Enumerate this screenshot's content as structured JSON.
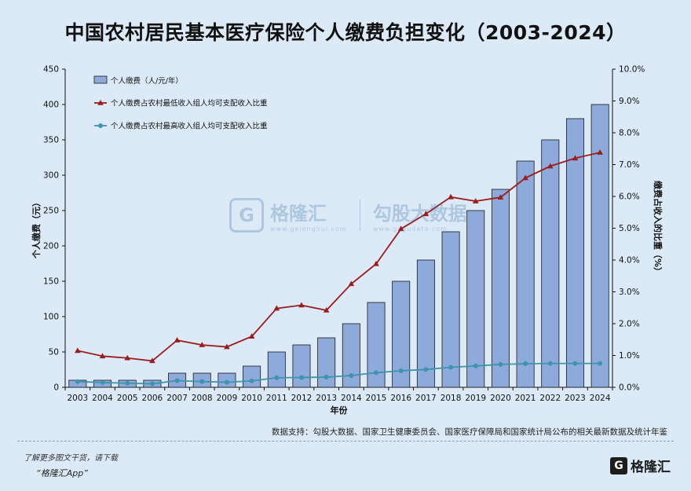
{
  "title": "中国农村居民基本医疗保险个人缴费负担变化（2003-2024）",
  "chart_data": {
    "type": "bar",
    "categories": [
      "2003",
      "2004",
      "2005",
      "2006",
      "2007",
      "2008",
      "2009",
      "2010",
      "2011",
      "2012",
      "2013",
      "2014",
      "2015",
      "2016",
      "2017",
      "2018",
      "2019",
      "2020",
      "2021",
      "2022",
      "2023",
      "2024"
    ],
    "series": [
      {
        "name": "个人缴费（人/元/年）",
        "type": "bar",
        "axis": "left",
        "color": "#8eaadb",
        "values": [
          10,
          10,
          10,
          10,
          20,
          20,
          20,
          30,
          50,
          60,
          70,
          90,
          120,
          150,
          180,
          220,
          250,
          280,
          320,
          350,
          380,
          400
        ]
      },
      {
        "name": "个人缴费占农村最低收入组人均可支配收入比重",
        "type": "line",
        "axis": "right",
        "color": "#9b1c1c",
        "values": [
          1.15,
          0.98,
          0.92,
          0.83,
          1.48,
          1.33,
          1.27,
          1.6,
          2.48,
          2.58,
          2.42,
          3.25,
          3.88,
          4.98,
          5.45,
          5.98,
          5.85,
          5.97,
          6.58,
          6.95,
          7.2,
          7.38
        ]
      },
      {
        "name": "个人缴费占农村最高收入组人均可支配收入比重",
        "type": "line",
        "axis": "right",
        "color": "#3e93ad",
        "values": [
          0.18,
          0.15,
          0.13,
          0.11,
          0.21,
          0.18,
          0.16,
          0.2,
          0.3,
          0.31,
          0.32,
          0.37,
          0.46,
          0.52,
          0.56,
          0.63,
          0.67,
          0.72,
          0.74,
          0.75,
          0.75,
          0.75
        ]
      }
    ],
    "xlabel": "年份",
    "ylabel": "个人缴费（元）",
    "y2label": "缴费占收入的比重（%）",
    "ylim": [
      0,
      450
    ],
    "y2lim": [
      0,
      10
    ],
    "yticks": [
      "0",
      "50",
      "100",
      "150",
      "200",
      "250",
      "300",
      "350",
      "400",
      "450"
    ],
    "y2ticks": [
      "0.0%",
      "1.0%",
      "2.0%",
      "3.0%",
      "4.0%",
      "5.0%",
      "6.0%",
      "7.0%",
      "8.0%",
      "9.0%",
      "10.0%"
    ],
    "legend": "top-left",
    "grid": false
  },
  "source": "数据支持：勾股大数据、国家卫生健康委员会、国家医疗保障局和国家统计局公布的相关最新数据及统计年鉴",
  "watermark": {
    "brand1": "格隆汇",
    "brand1_url": "www.gelonghui.com",
    "brand2": "勾股大数据",
    "brand2_url": "www.gogudata.com"
  },
  "footer": {
    "line1": "了解更多图文干货，请下载",
    "line2": "“格隆汇App”",
    "logo_mark": "G",
    "logo_text": "格隆汇"
  }
}
